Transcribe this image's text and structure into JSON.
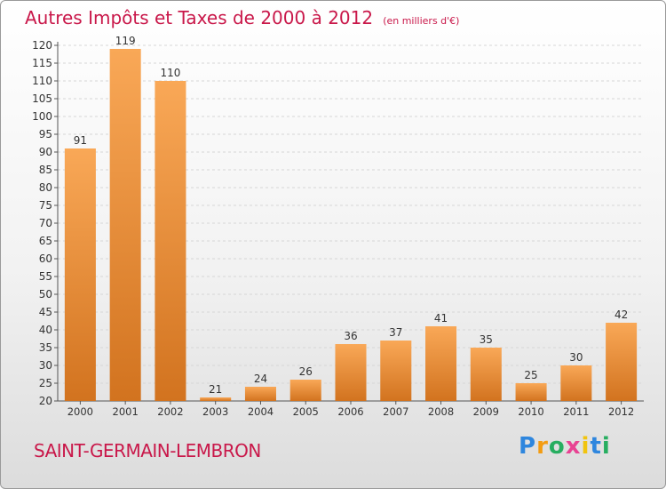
{
  "chart_data": {
    "type": "bar",
    "title": "Autres Impôts et Taxes de 2000 à 2012",
    "subtitle": "(en milliers d'€)",
    "categories": [
      "2000",
      "2001",
      "2002",
      "2003",
      "2004",
      "2005",
      "2006",
      "2007",
      "2008",
      "2009",
      "2010",
      "2011",
      "2012"
    ],
    "values": [
      91,
      119,
      110,
      21,
      24,
      26,
      36,
      37,
      41,
      35,
      25,
      30,
      42
    ],
    "ylim": [
      20,
      120
    ],
    "yticks": [
      20,
      25,
      30,
      35,
      40,
      45,
      50,
      55,
      60,
      65,
      70,
      75,
      80,
      85,
      90,
      95,
      100,
      105,
      110,
      115,
      120
    ],
    "xlabel": "",
    "ylabel": "",
    "grid": true,
    "bar_color": "#f39c3c"
  },
  "commune": "SAINT-GERMAIN-LEMBRON",
  "logo": {
    "letters": [
      "P",
      "r",
      "o",
      "x",
      "i",
      "t",
      "i"
    ],
    "colors": [
      "#2e86de",
      "#f39c12",
      "#27ae60",
      "#e84393",
      "#f1c40f",
      "#2e86de",
      "#27ae60"
    ]
  }
}
